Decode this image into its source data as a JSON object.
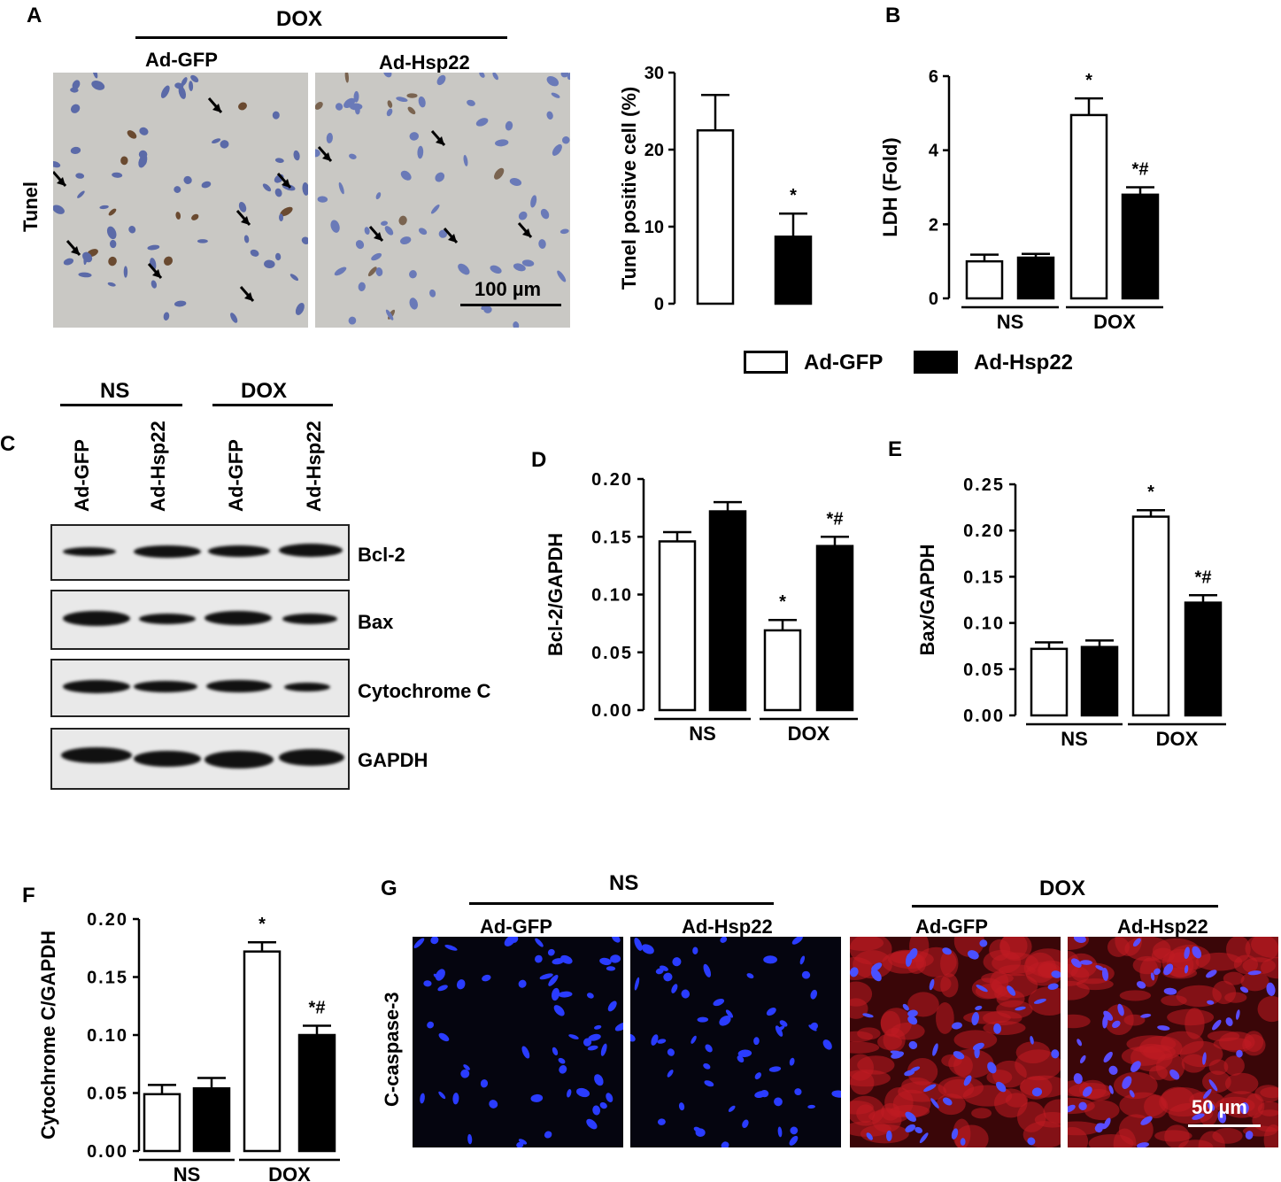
{
  "panels": {
    "A": {
      "letter": "A",
      "group": "DOX",
      "conditions": [
        "Ad-GFP",
        "Ad-Hsp22"
      ],
      "row_label": "Tunel",
      "scale_bar": "100 µm"
    },
    "B": {
      "letter": "B"
    },
    "C": {
      "letter": "C",
      "groups": [
        "NS",
        "DOX"
      ],
      "lanes": [
        "Ad-GFP",
        "Ad-Hsp22",
        "Ad-GFP",
        "Ad-Hsp22"
      ],
      "proteins": [
        "Bcl-2",
        "Bax",
        "Cytochrome C",
        "GAPDH"
      ]
    },
    "D": {
      "letter": "D"
    },
    "E": {
      "letter": "E"
    },
    "F": {
      "letter": "F"
    },
    "G": {
      "letter": "G",
      "groups": [
        "NS",
        "DOX"
      ],
      "conditions": [
        "Ad-GFP",
        "Ad-Hsp22",
        "Ad-GFP",
        "Ad-Hsp22"
      ],
      "row_label": "C-caspase-3",
      "scale_bar": "50 µm"
    }
  },
  "legend": {
    "items": [
      "Ad-GFP",
      "Ad-Hsp22"
    ],
    "colors": [
      "#ffffff",
      "#000000"
    ]
  },
  "chart_data": [
    {
      "id": "A-bar",
      "type": "bar",
      "ylabel": "Tunel positive cell (%)",
      "ylim": [
        0,
        30
      ],
      "yticks": [
        "0",
        "10",
        "20",
        "30"
      ],
      "categories": [
        "Ad-GFP",
        "Ad-Hsp22"
      ],
      "values": [
        22.5,
        8.7
      ],
      "errors": [
        4.6,
        3.0
      ],
      "annotations": [
        "",
        "*"
      ],
      "fills": [
        "#ffffff",
        "#000000"
      ]
    },
    {
      "id": "B",
      "type": "bar",
      "ylabel": "LDH (Fold)",
      "ylim": [
        0,
        6
      ],
      "yticks": [
        "0",
        "2",
        "4",
        "6"
      ],
      "groups": [
        "NS",
        "DOX"
      ],
      "series": [
        {
          "name": "Ad-GFP",
          "values": [
            1.0,
            4.95
          ],
          "errors": [
            0.18,
            0.45
          ]
        },
        {
          "name": "Ad-Hsp22",
          "values": [
            1.1,
            2.8
          ],
          "errors": [
            0.1,
            0.2
          ]
        }
      ],
      "annotations": [
        [
          "",
          ""
        ],
        [
          "*",
          "*#"
        ]
      ]
    },
    {
      "id": "D",
      "type": "bar",
      "ylabel": "Bcl-2/GAPDH",
      "ylim": [
        0,
        0.2
      ],
      "yticks": [
        "0.00",
        "0.05",
        "0.10",
        "0.15",
        "0.20"
      ],
      "groups": [
        "NS",
        "DOX"
      ],
      "series": [
        {
          "name": "Ad-GFP",
          "values": [
            0.146,
            0.069
          ],
          "errors": [
            0.008,
            0.009
          ]
        },
        {
          "name": "Ad-Hsp22",
          "values": [
            0.172,
            0.142
          ],
          "errors": [
            0.008,
            0.008
          ]
        }
      ],
      "annotations": [
        [
          "",
          ""
        ],
        [
          "*",
          "*#"
        ]
      ]
    },
    {
      "id": "E",
      "type": "bar",
      "ylabel": "Bax/GAPDH",
      "ylim": [
        0,
        0.25
      ],
      "yticks": [
        "0.00",
        "0.05",
        "0.10",
        "0.15",
        "0.20",
        "0.25"
      ],
      "groups": [
        "NS",
        "DOX"
      ],
      "series": [
        {
          "name": "Ad-GFP",
          "values": [
            0.072,
            0.215
          ],
          "errors": [
            0.007,
            0.007
          ]
        },
        {
          "name": "Ad-Hsp22",
          "values": [
            0.074,
            0.122
          ],
          "errors": [
            0.007,
            0.008
          ]
        }
      ],
      "annotations": [
        [
          "",
          ""
        ],
        [
          "*",
          "*#"
        ]
      ]
    },
    {
      "id": "F",
      "type": "bar",
      "ylabel": "Cytochrome C/GAPDH",
      "ylim": [
        0,
        0.2
      ],
      "yticks": [
        "0.00",
        "0.05",
        "0.10",
        "0.15",
        "0.20"
      ],
      "groups": [
        "NS",
        "DOX"
      ],
      "series": [
        {
          "name": "Ad-GFP",
          "values": [
            0.049,
            0.172
          ],
          "errors": [
            0.008,
            0.008
          ]
        },
        {
          "name": "Ad-Hsp22",
          "values": [
            0.054,
            0.1
          ],
          "errors": [
            0.009,
            0.008
          ]
        }
      ],
      "annotations": [
        [
          "",
          ""
        ],
        [
          "*",
          "*#"
        ]
      ]
    }
  ]
}
